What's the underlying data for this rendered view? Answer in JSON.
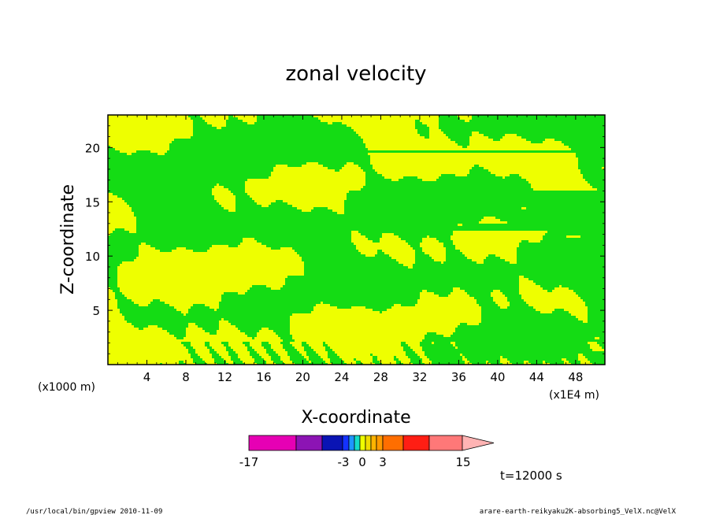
{
  "chart_data": {
    "type": "heatmap",
    "title": "zonal velocity",
    "xlabel": "X-coordinate",
    "ylabel": "Z-coordinate",
    "x_unit": "(x1E4 m)",
    "y_unit": "(x1000 m)",
    "xlim": [
      0,
      51
    ],
    "ylim": [
      0,
      23
    ],
    "x_ticks": [
      "4",
      "8",
      "12",
      "16",
      "20",
      "24",
      "28",
      "32",
      "36",
      "40",
      "44",
      "48"
    ],
    "y_ticks": [
      "5",
      "10",
      "15",
      "20"
    ],
    "time_label": "t=12000 s",
    "colorbar": {
      "tick_labels": [
        "-17",
        "-3",
        "0",
        "3",
        "15"
      ],
      "colors": [
        "#e600b4",
        "#8c14b4",
        "#0a14b4",
        "#1432ff",
        "#1e96ff",
        "#14dcc8",
        "#eeff00",
        "#f0dc00",
        "#ffb400",
        "#ff9a00",
        "#ff6e00",
        "#ff1e14",
        "#ff7878",
        "#ffb4b4"
      ],
      "dominant_colors": {
        "negative_small": "#14dc14",
        "positive_small": "#eeff00"
      }
    },
    "field_description_levels": [
      -17,
      -3,
      0,
      3,
      15
    ]
  },
  "footer": {
    "left": "/usr/local/bin/gpview  2010-11-09",
    "right": "arare-earth-reikyaku2K-absorbing5_VelX.nc@VelX"
  }
}
